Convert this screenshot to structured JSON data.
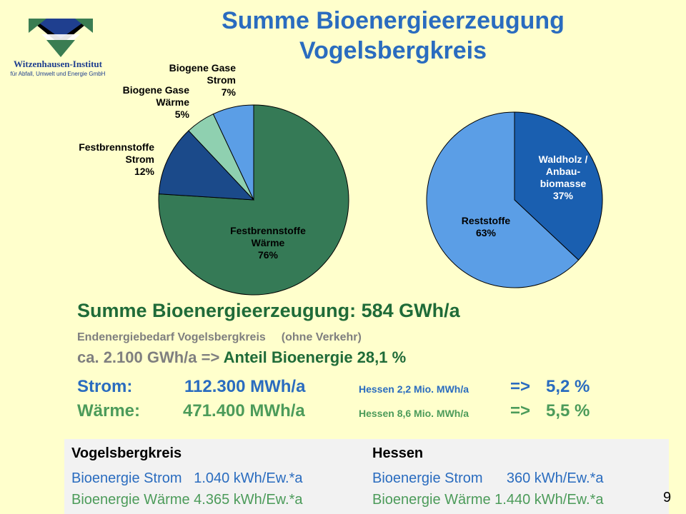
{
  "logo": {
    "name": "Witzenhausen-Institut",
    "subtitle": "für Abfall, Umwelt und Energie GmbH"
  },
  "title": {
    "line1": "Summe Bioenergieerzeugung",
    "line2": "Vogelsbergkreis"
  },
  "chart_data": [
    {
      "type": "pie",
      "title": "",
      "slices": [
        {
          "name_lines": [
            "Festbrennstoffe",
            "Wärme"
          ],
          "label": "76%",
          "value": 76,
          "color": "#357a56"
        },
        {
          "name_lines": [
            "Festbrennstoffe",
            "Strom"
          ],
          "label": "12%",
          "value": 12,
          "color": "#1b4a8a"
        },
        {
          "name_lines": [
            "Biogene Gase",
            "Wärme"
          ],
          "label": "5%",
          "value": 5,
          "color": "#8fd0b0"
        },
        {
          "name_lines": [
            "Biogene Gase",
            "Strom"
          ],
          "label": "7%",
          "value": 7,
          "color": "#5b9ee6"
        }
      ]
    },
    {
      "type": "pie",
      "title": "",
      "slices": [
        {
          "name_lines": [
            "Waldholz /",
            "Anbau-",
            "biomasse"
          ],
          "label": "37%",
          "value": 37,
          "color": "#1a5fb0"
        },
        {
          "name_lines": [
            "Reststoffe"
          ],
          "label": "63%",
          "value": 63,
          "color": "#5b9ee6"
        }
      ]
    }
  ],
  "summary": {
    "total": "Summe Bioenergieerzeugung: 584 GWh/a",
    "demand_label": "Endenergiebedarf Vogelsbergkreis",
    "demand_note": "(ohne Verkehr)",
    "demand_value": "ca. 2.100 GWh/a =>",
    "share": "Anteil Bioenergie 28,1 %"
  },
  "rows": {
    "strom": {
      "label": "Strom:",
      "value": "112.300 MWh/a",
      "ref": "Hessen 2,2 Mio. MWh/a",
      "arrow": "=>",
      "pct": "5,2 %"
    },
    "waerme": {
      "label": "Wärme:",
      "value": "471.400 MWh/a",
      "ref": "Hessen 8,6 Mio. MWh/a",
      "arrow": "=>",
      "pct": "5,5 %"
    }
  },
  "table": {
    "left": {
      "header": "Vogelsbergkreis",
      "row1": "Bioenergie Strom   1.040 kWh/Ew.*a",
      "row2": "Bioenergie Wärme 4.365 kWh/Ew.*a"
    },
    "right": {
      "header": "Hessen",
      "row1": "Bioenergie Strom      360 kWh/Ew.*a",
      "row2": "Bioenergie Wärme 1.440 kWh/Ew.*a"
    }
  },
  "page_number": "9"
}
